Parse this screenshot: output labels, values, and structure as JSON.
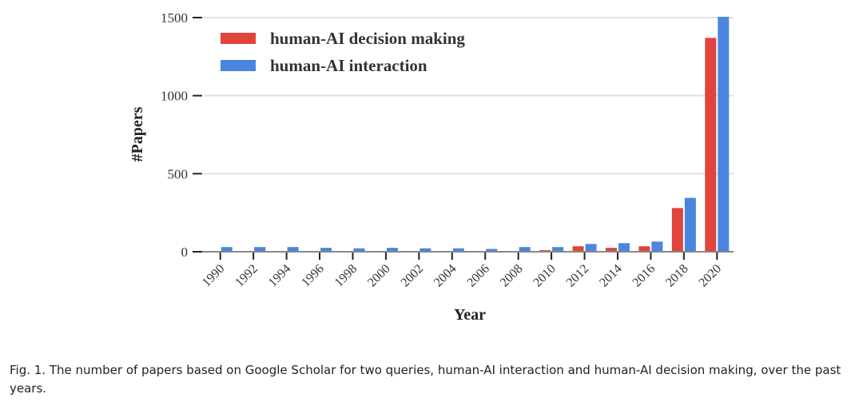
{
  "chart_data": {
    "type": "bar",
    "xlabel": "Year",
    "ylabel": "#Papers",
    "categories": [
      "1990",
      "1992",
      "1994",
      "1996",
      "1998",
      "2000",
      "2002",
      "2004",
      "2006",
      "2008",
      "2010",
      "2012",
      "2014",
      "2016",
      "2018",
      "2020"
    ],
    "series": [
      {
        "name": "human-AI decision making",
        "color": "#e0443c",
        "values": [
          2,
          2,
          2,
          2,
          2,
          3,
          3,
          3,
          4,
          5,
          10,
          35,
          25,
          35,
          280,
          1370
        ]
      },
      {
        "name": "human-AI interaction",
        "color": "#4a86e0",
        "values": [
          30,
          30,
          30,
          25,
          22,
          25,
          22,
          22,
          18,
          30,
          30,
          50,
          55,
          65,
          345,
          1505
        ]
      }
    ],
    "ylim": [
      0,
      1500
    ],
    "yticks": [
      0,
      500,
      1000,
      1500
    ],
    "grid": true,
    "legend": "upper left",
    "caption": "Fig. 1.  The number of papers based on Google Scholar for two queries, human-AI interaction and human-AI decision making, over the past years."
  }
}
